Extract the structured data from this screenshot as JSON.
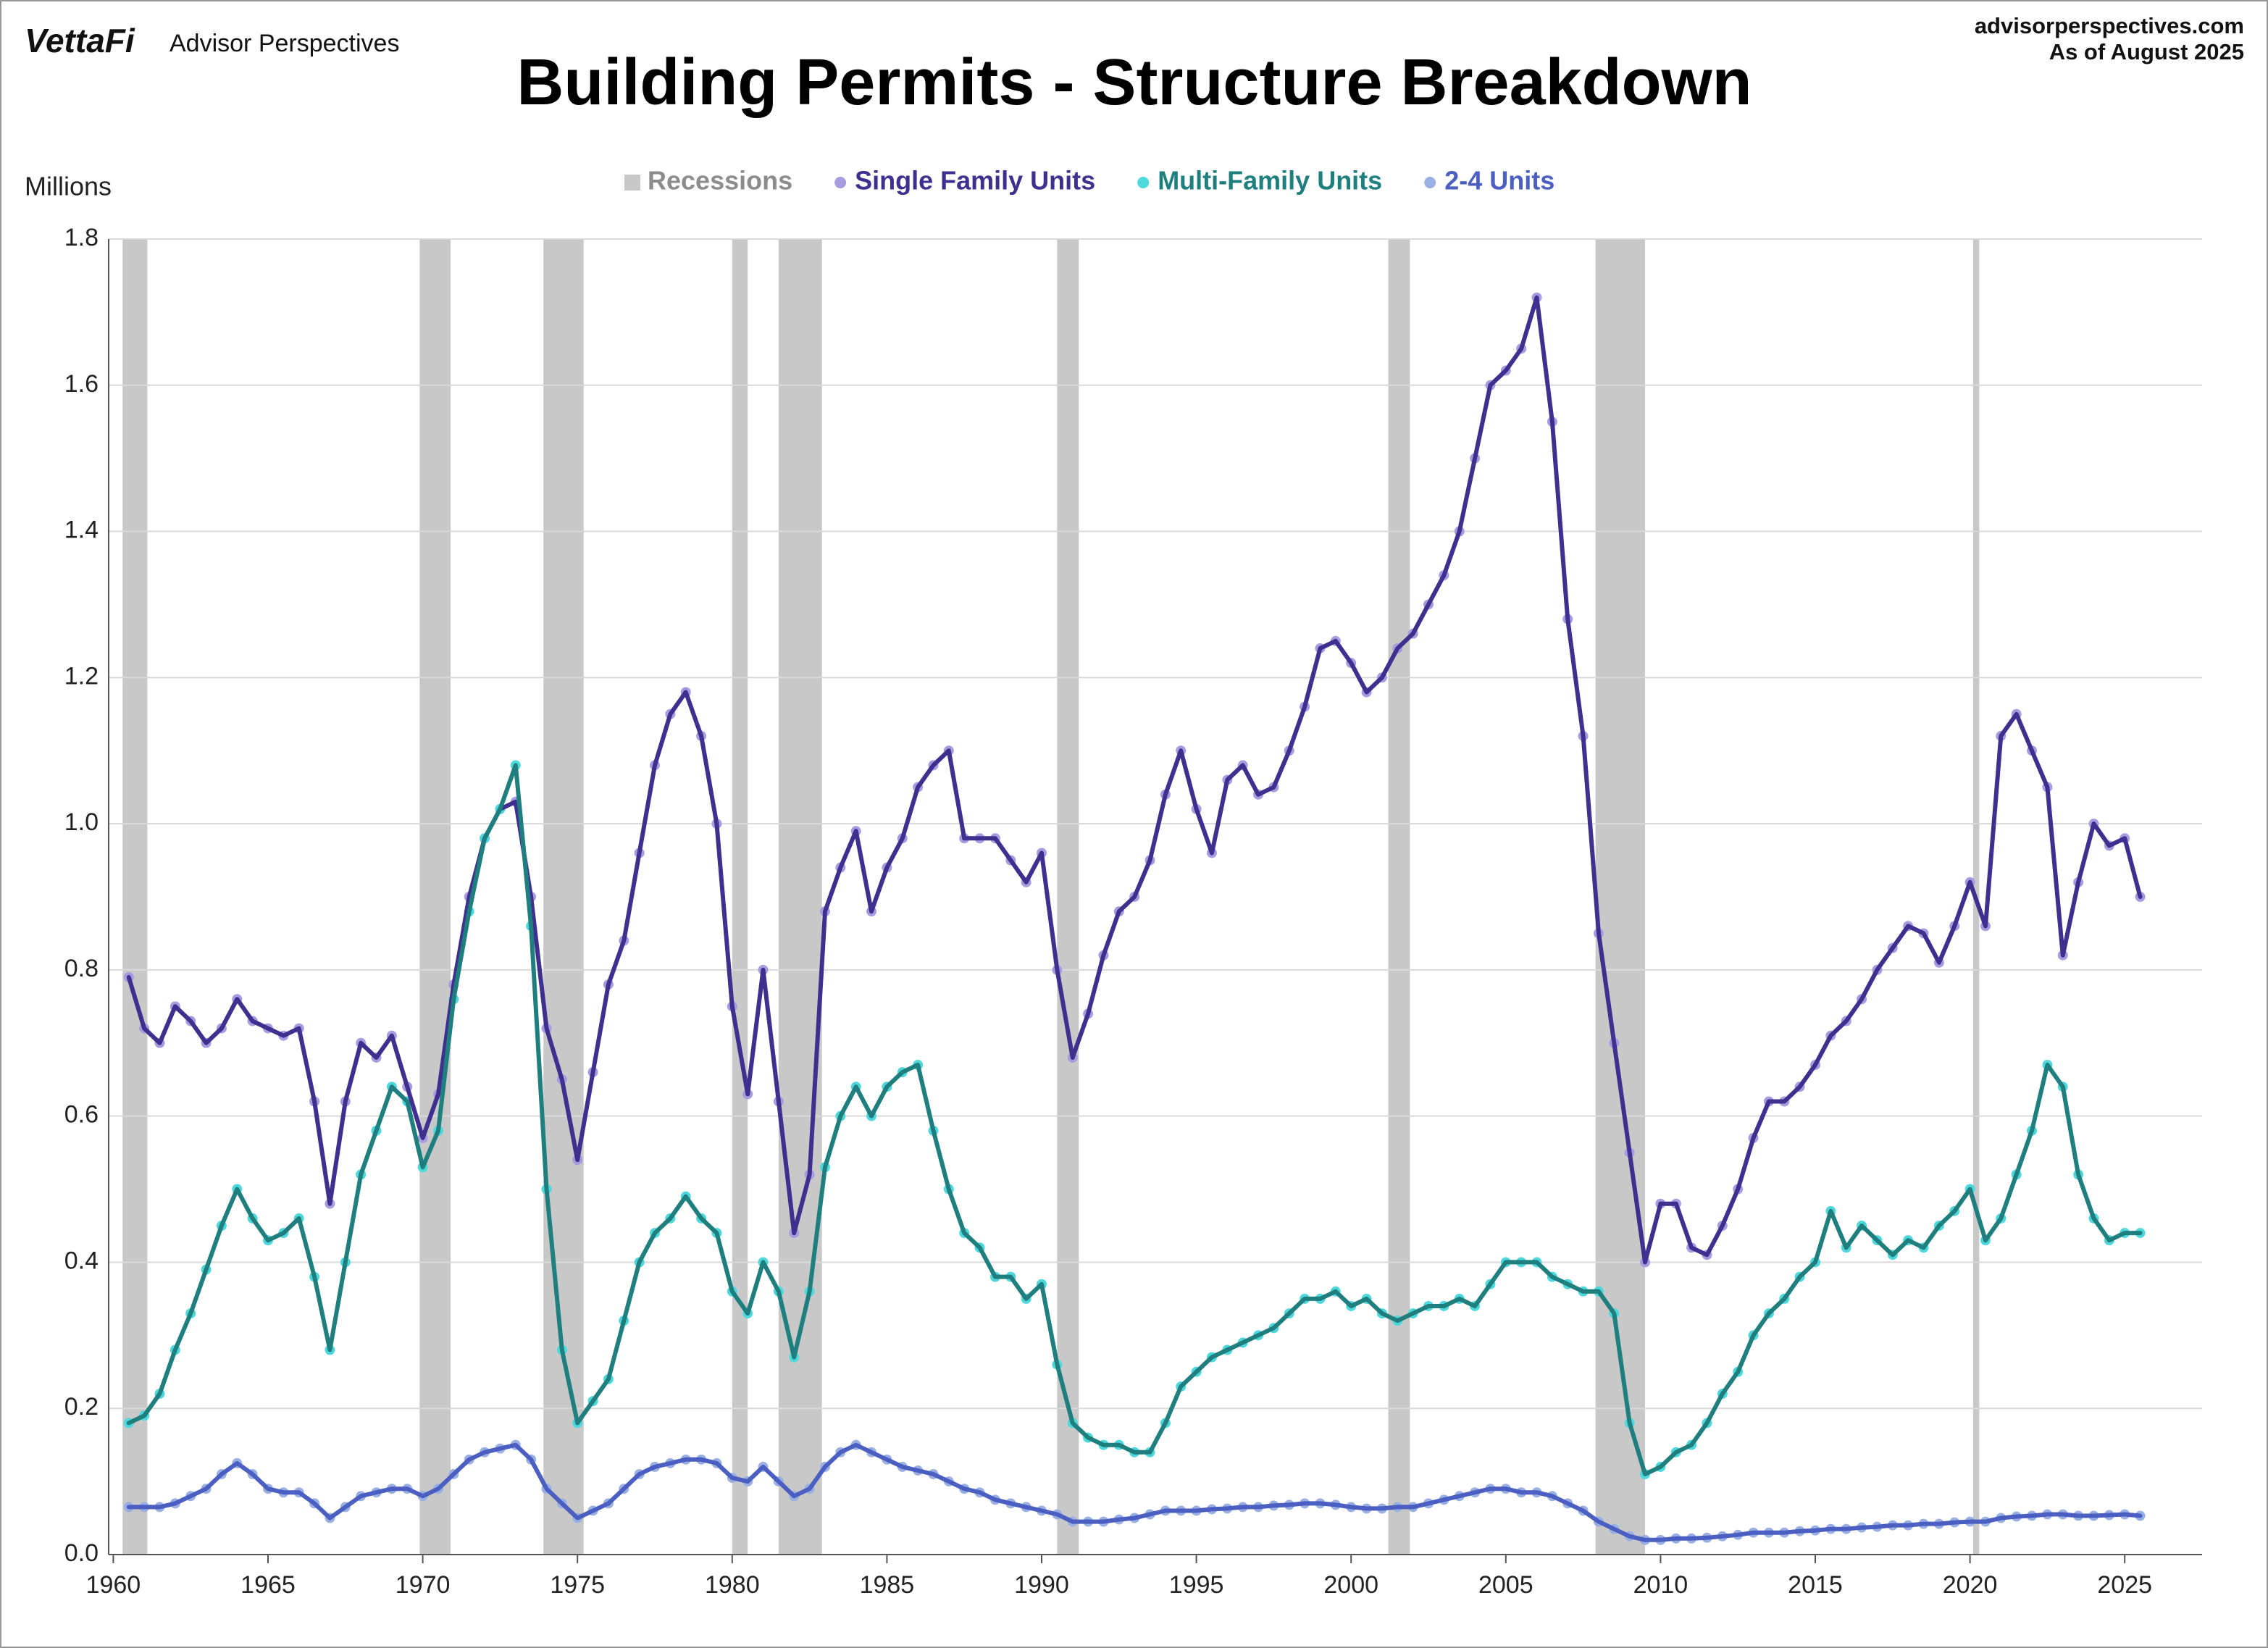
{
  "chart_data": {
    "type": "line",
    "title": "Building Permits - Structure Breakdown",
    "brand": "VettaFi",
    "publisher": "Advisor Perspectives",
    "source": "advisorperspectives.com",
    "as_of": "As of August 2025",
    "y_label": "Millions",
    "xlim": [
      1959.85,
      2027.5
    ],
    "ylim": [
      0,
      1.8
    ],
    "xticks": [
      1960,
      1965,
      1970,
      1975,
      1980,
      1985,
      1990,
      1995,
      2000,
      2005,
      2010,
      2015,
      2020,
      2025
    ],
    "yticks": [
      {
        "value": 0,
        "label": "0.0"
      },
      0.2,
      0.4,
      0.6,
      0.8,
      {
        "value": 1,
        "label": "1.0"
      },
      1.2,
      1.4,
      1.6,
      1.8
    ],
    "grid": true,
    "recessions": {
      "name": "Recessions",
      "color": "#c8c8c8",
      "label_color": "#8c8c8c",
      "spans": [
        [
          1960.3,
          1961.1
        ],
        [
          1969.9,
          1970.9
        ],
        [
          1973.9,
          1975.2
        ],
        [
          1980.0,
          1980.5
        ],
        [
          1981.5,
          1982.9
        ],
        [
          1990.5,
          1991.2
        ],
        [
          2001.2,
          2001.9
        ],
        [
          2007.9,
          2009.5
        ],
        [
          2020.1,
          2020.3
        ]
      ]
    },
    "x": [
      1960.5,
      1961,
      1961.5,
      1962,
      1962.5,
      1963,
      1963.5,
      1964,
      1964.5,
      1965,
      1965.5,
      1966,
      1966.5,
      1967,
      1967.5,
      1968,
      1968.5,
      1969,
      1969.5,
      1970,
      1970.5,
      1971,
      1971.5,
      1972,
      1972.5,
      1973,
      1973.5,
      1974,
      1974.5,
      1975,
      1975.5,
      1976,
      1976.5,
      1977,
      1977.5,
      1978,
      1978.5,
      1979,
      1979.5,
      1980,
      1980.5,
      1981,
      1981.5,
      1982,
      1982.5,
      1983,
      1983.5,
      1984,
      1984.5,
      1985,
      1985.5,
      1986,
      1986.5,
      1987,
      1987.5,
      1988,
      1988.5,
      1989,
      1989.5,
      1990,
      1990.5,
      1991,
      1991.5,
      1992,
      1992.5,
      1993,
      1993.5,
      1994,
      1994.5,
      1995,
      1995.5,
      1996,
      1996.5,
      1997,
      1997.5,
      1998,
      1998.5,
      1999,
      1999.5,
      2000,
      2000.5,
      2001,
      2001.5,
      2002,
      2002.5,
      2003,
      2003.5,
      2004,
      2004.5,
      2005,
      2005.5,
      2006,
      2006.5,
      2007,
      2007.5,
      2008,
      2008.5,
      2009,
      2009.5,
      2010,
      2010.5,
      2011,
      2011.5,
      2012,
      2012.5,
      2013,
      2013.5,
      2014,
      2014.5,
      2015,
      2015.5,
      2016,
      2016.5,
      2017,
      2017.5,
      2018,
      2018.5,
      2019,
      2019.5,
      2020,
      2020.5,
      2021,
      2021.5,
      2022,
      2022.5,
      2023,
      2023.5,
      2024,
      2024.5,
      2025,
      2025.5
    ],
    "series": [
      {
        "name": "Single Family Units",
        "color": "#3f2f8f",
        "marker_color": "#a99be0",
        "values": [
          0.79,
          0.72,
          0.7,
          0.75,
          0.73,
          0.7,
          0.72,
          0.76,
          0.73,
          0.72,
          0.71,
          0.72,
          0.62,
          0.48,
          0.62,
          0.7,
          0.68,
          0.71,
          0.64,
          0.57,
          0.63,
          0.78,
          0.9,
          0.98,
          1.02,
          1.03,
          0.9,
          0.72,
          0.65,
          0.54,
          0.66,
          0.78,
          0.84,
          0.96,
          1.08,
          1.15,
          1.18,
          1.12,
          1.0,
          0.75,
          0.63,
          0.8,
          0.62,
          0.44,
          0.52,
          0.88,
          0.94,
          0.99,
          0.88,
          0.94,
          0.98,
          1.05,
          1.08,
          1.1,
          0.98,
          0.98,
          0.98,
          0.95,
          0.92,
          0.96,
          0.8,
          0.68,
          0.74,
          0.82,
          0.88,
          0.9,
          0.95,
          1.04,
          1.1,
          1.02,
          0.96,
          1.06,
          1.08,
          1.04,
          1.05,
          1.1,
          1.16,
          1.24,
          1.25,
          1.22,
          1.18,
          1.2,
          1.24,
          1.26,
          1.3,
          1.34,
          1.4,
          1.5,
          1.6,
          1.62,
          1.65,
          1.72,
          1.55,
          1.28,
          1.12,
          0.85,
          0.7,
          0.55,
          0.4,
          0.48,
          0.48,
          0.42,
          0.41,
          0.45,
          0.5,
          0.57,
          0.62,
          0.62,
          0.64,
          0.67,
          0.71,
          0.73,
          0.76,
          0.8,
          0.83,
          0.86,
          0.85,
          0.81,
          0.86,
          0.92,
          0.86,
          1.12,
          1.15,
          1.1,
          1.05,
          0.82,
          0.92,
          1.0,
          0.97,
          0.98,
          0.9
        ]
      },
      {
        "name": "Multi-Family Units",
        "color": "#1f7f7f",
        "marker_color": "#4fd8dc",
        "values": [
          0.18,
          0.19,
          0.22,
          0.28,
          0.33,
          0.39,
          0.45,
          0.5,
          0.46,
          0.43,
          0.44,
          0.46,
          0.38,
          0.28,
          0.4,
          0.52,
          0.58,
          0.64,
          0.62,
          0.53,
          0.58,
          0.76,
          0.88,
          0.98,
          1.02,
          1.08,
          0.86,
          0.5,
          0.28,
          0.18,
          0.21,
          0.24,
          0.32,
          0.4,
          0.44,
          0.46,
          0.49,
          0.46,
          0.44,
          0.36,
          0.33,
          0.4,
          0.36,
          0.27,
          0.36,
          0.53,
          0.6,
          0.64,
          0.6,
          0.64,
          0.66,
          0.67,
          0.58,
          0.5,
          0.44,
          0.42,
          0.38,
          0.38,
          0.35,
          0.37,
          0.26,
          0.18,
          0.16,
          0.15,
          0.15,
          0.14,
          0.14,
          0.18,
          0.23,
          0.25,
          0.27,
          0.28,
          0.29,
          0.3,
          0.31,
          0.33,
          0.35,
          0.35,
          0.36,
          0.34,
          0.35,
          0.33,
          0.32,
          0.33,
          0.34,
          0.34,
          0.35,
          0.34,
          0.37,
          0.4,
          0.4,
          0.4,
          0.38,
          0.37,
          0.36,
          0.36,
          0.33,
          0.18,
          0.11,
          0.12,
          0.14,
          0.15,
          0.18,
          0.22,
          0.25,
          0.3,
          0.33,
          0.35,
          0.38,
          0.4,
          0.47,
          0.42,
          0.45,
          0.43,
          0.41,
          0.43,
          0.42,
          0.45,
          0.47,
          0.5,
          0.43,
          0.46,
          0.52,
          0.58,
          0.67,
          0.64,
          0.52,
          0.46,
          0.43,
          0.44,
          0.44
        ]
      },
      {
        "name": "2-4 Units",
        "color": "#4a5fc1",
        "marker_color": "#9bb0e2",
        "values": [
          0.065,
          0.065,
          0.065,
          0.07,
          0.08,
          0.09,
          0.11,
          0.125,
          0.11,
          0.09,
          0.085,
          0.085,
          0.07,
          0.05,
          0.065,
          0.08,
          0.085,
          0.09,
          0.09,
          0.08,
          0.09,
          0.11,
          0.13,
          0.14,
          0.145,
          0.15,
          0.13,
          0.09,
          0.07,
          0.05,
          0.06,
          0.07,
          0.09,
          0.11,
          0.12,
          0.125,
          0.13,
          0.13,
          0.125,
          0.105,
          0.1,
          0.12,
          0.1,
          0.08,
          0.09,
          0.12,
          0.14,
          0.15,
          0.14,
          0.13,
          0.12,
          0.115,
          0.11,
          0.1,
          0.09,
          0.085,
          0.075,
          0.07,
          0.065,
          0.06,
          0.055,
          0.045,
          0.045,
          0.045,
          0.048,
          0.05,
          0.055,
          0.06,
          0.06,
          0.06,
          0.062,
          0.063,
          0.065,
          0.065,
          0.067,
          0.068,
          0.07,
          0.07,
          0.068,
          0.065,
          0.063,
          0.063,
          0.065,
          0.065,
          0.07,
          0.075,
          0.08,
          0.085,
          0.09,
          0.09,
          0.085,
          0.085,
          0.08,
          0.07,
          0.06,
          0.045,
          0.035,
          0.025,
          0.02,
          0.02,
          0.022,
          0.022,
          0.023,
          0.025,
          0.027,
          0.03,
          0.03,
          0.03,
          0.032,
          0.033,
          0.035,
          0.035,
          0.037,
          0.038,
          0.04,
          0.04,
          0.042,
          0.042,
          0.044,
          0.045,
          0.045,
          0.05,
          0.052,
          0.053,
          0.055,
          0.055,
          0.053,
          0.053,
          0.054,
          0.055,
          0.053
        ]
      }
    ]
  }
}
